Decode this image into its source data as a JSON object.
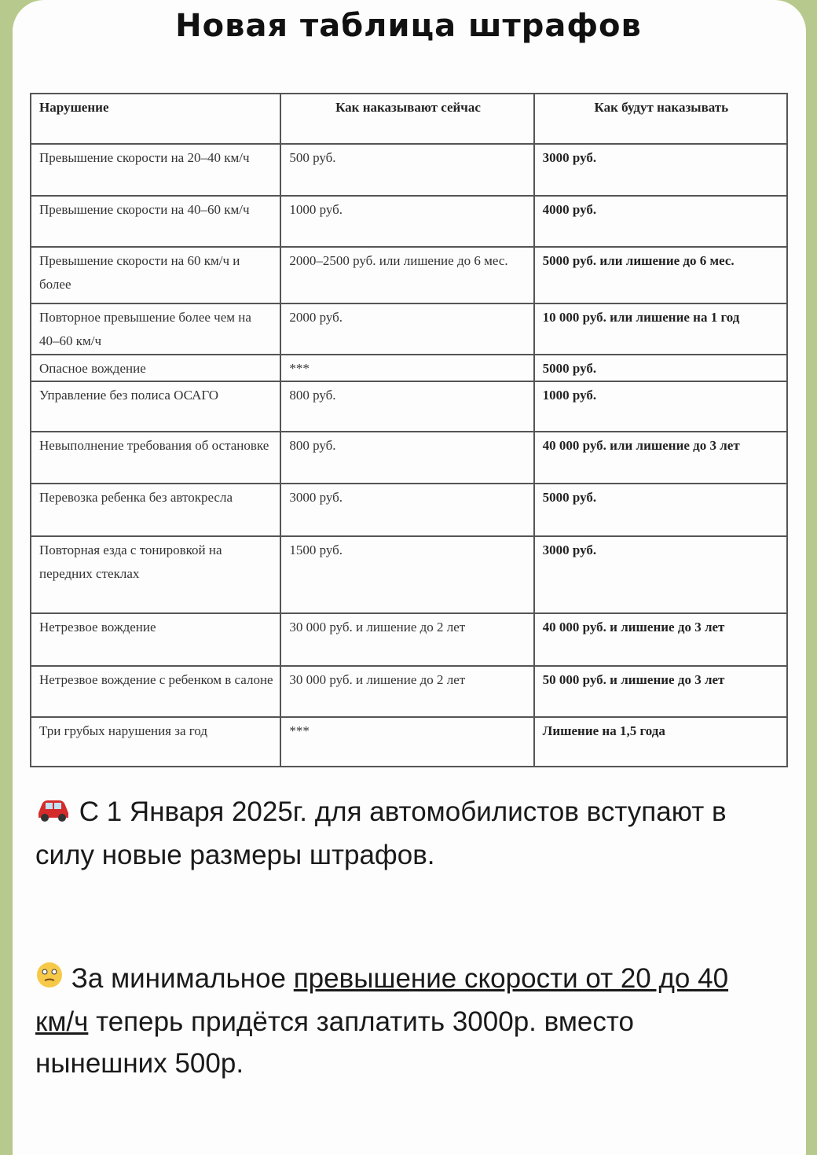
{
  "title": "Новая таблица штрафов",
  "table": {
    "headers": [
      "Нарушение",
      "Как наказывают сейчас",
      "Как будут наказывать"
    ],
    "rows": [
      [
        "Превышение скорости на 20–40 км/ч",
        "500 руб.",
        "3000 руб."
      ],
      [
        "Превышение скорости на 40–60 км/ч",
        "1000 руб.",
        "4000 руб."
      ],
      [
        "Превышение скорости на 60 км/ч и более",
        "2000–2500 руб. или лишение до 6 мес.",
        "5000 руб. или лишение до 6 мес."
      ],
      [
        "Повторное превышение более чем на 40–60 км/ч",
        "2000 руб.",
        "10 000 руб. или лишение на 1 год"
      ],
      [
        "Опасное вождение",
        "***",
        "5000 руб."
      ],
      [
        "Управление без полиса ОСАГО",
        "800 руб.",
        "1000 руб."
      ],
      [
        "Невыполнение требования об остановке",
        "800 руб.",
        "40 000 руб. или лишение до 3 лет"
      ],
      [
        "Перевозка ребенка без автокресла",
        "3000 руб.",
        "5000 руб."
      ],
      [
        "Повторная езда с тонировкой на передних стеклах",
        "1500 руб.",
        "3000 руб."
      ],
      [
        "Нетрезвое вождение",
        "30 000 руб. и лишение до 2 лет",
        "40 000 руб. и лишение до 3 лет"
      ],
      [
        "Нетрезвое вождение с ребенком в салоне",
        "30 000 руб. и лишение до 2 лет",
        "50 000 руб. и лишение до 3 лет"
      ],
      [
        "Три грубых нарушения за год",
        "***",
        "Лишение на 1,5 года"
      ]
    ]
  },
  "post": {
    "p1_icon": "car-emoji",
    "p1": "С 1 Января 2025г. для автомобилистов вступают в силу новые размеры штрафов.",
    "p2_icon": "thinking-face-emoji",
    "p2_before": "За минимальное ",
    "p2_link": "превышение скорости от 20 до 40 км/ч",
    "p2_after": " теперь придётся заплатить 3000р. вместо нынешних 500р."
  },
  "colors": {
    "wallpaper": "#b7c98c",
    "bubble": "#fdfdfd"
  }
}
